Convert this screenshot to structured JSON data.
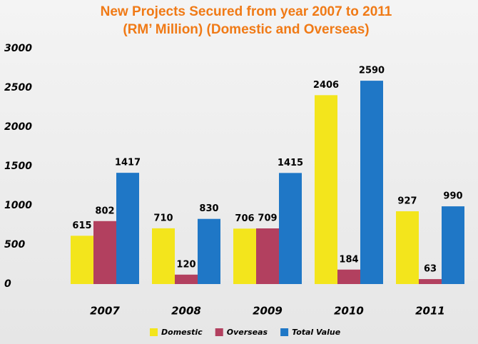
{
  "chart_data": {
    "type": "bar",
    "title": [
      "New Projects Secured from year 2007 to 2011",
      "(RM’ Million) (Domestic and Overseas)"
    ],
    "categories": [
      "2007",
      "2008",
      "2009",
      "2010",
      "2011"
    ],
    "series": [
      {
        "name": "Domestic",
        "color": "#f3e51c",
        "values": [
          615,
          710,
          706,
          2406,
          927
        ]
      },
      {
        "name": "Overseas",
        "color": "#b2405f",
        "values": [
          802,
          120,
          709,
          184,
          63
        ]
      },
      {
        "name": "Total Value",
        "color": "#1f77c6",
        "values": [
          1417,
          830,
          1415,
          2590,
          990
        ]
      }
    ],
    "ylim": [
      0,
      3000
    ],
    "yticks": [
      0,
      500,
      1000,
      1500,
      2000,
      2500,
      3000
    ],
    "grid": false,
    "legend": "bottom"
  }
}
